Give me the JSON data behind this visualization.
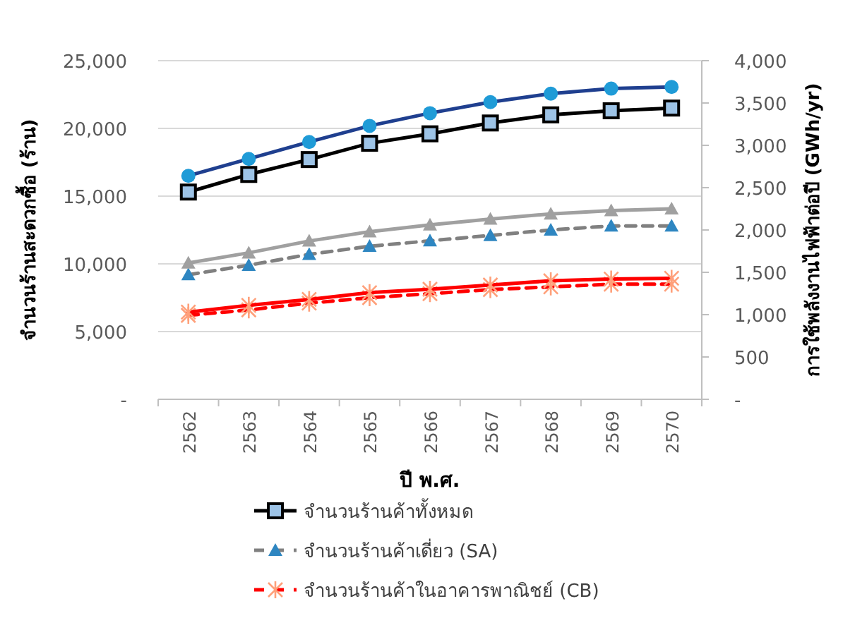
{
  "chart_data": {
    "type": "line",
    "xlabel": "ปี พ.ศ.",
    "ylabel": "จำนวนร้านสะดวกซื้อ (ร้าน)",
    "y2label": "การใช้พลังงานไฟฟ้าต่อปี (GWh/yr)",
    "categories": [
      "2562",
      "2563",
      "2564",
      "2565",
      "2566",
      "2567",
      "2568",
      "2569",
      "2570"
    ],
    "ylim": [
      0,
      25000
    ],
    "yticks": [
      {
        "value": 0,
        "label": "-"
      },
      {
        "value": 5000,
        "label": "5,000"
      },
      {
        "value": 10000,
        "label": "10,000"
      },
      {
        "value": 15000,
        "label": "15,000"
      },
      {
        "value": 20000,
        "label": "20,000"
      },
      {
        "value": 25000,
        "label": "25,000"
      }
    ],
    "y2lim": [
      0,
      4000
    ],
    "y2ticks": [
      {
        "value": 0,
        "label": "-"
      },
      {
        "value": 500,
        "label": "500"
      },
      {
        "value": 1000,
        "label": "1,000"
      },
      {
        "value": 1500,
        "label": "1,500"
      },
      {
        "value": 2000,
        "label": "2,000"
      },
      {
        "value": 2500,
        "label": "2,500"
      },
      {
        "value": 3000,
        "label": "3,000"
      },
      {
        "value": 3500,
        "label": "3,500"
      },
      {
        "value": 4000,
        "label": "4,000"
      }
    ],
    "grid": "y",
    "legend": "bottom",
    "series": [
      {
        "name": "จำนวนร้านค้าทั้งหมด",
        "color": "#000000",
        "marker": "square",
        "line_style": "solid",
        "values": [
          15300,
          16600,
          17700,
          18900,
          19600,
          20400,
          21000,
          21300,
          21500
        ]
      },
      {
        "name": "จำนวนร้านค้าเดี่ยว (SA)",
        "color": "#808080",
        "marker": "triangle",
        "line_style": "dashed",
        "values": [
          9200,
          9900,
          10700,
          11300,
          11700,
          12100,
          12500,
          12800,
          12800
        ]
      },
      {
        "name": "จำนวนร้านค้าในอาคารพาณิชย์ (CB)",
        "color": "#ff0000",
        "marker": "cross",
        "line_style": "dashed",
        "values": [
          6200,
          6600,
          7100,
          7500,
          7800,
          8100,
          8300,
          8500,
          8500
        ]
      },
      {
        "color": "#1f3f8f",
        "marker": "circle",
        "line_style": "solid",
        "axis": "y2",
        "values": [
          2640,
          2840,
          3040,
          3230,
          3380,
          3510,
          3610,
          3670,
          3690
        ]
      },
      {
        "color": "#a0a0a0",
        "marker": "triangle",
        "line_style": "solid",
        "axis": "y2",
        "values": [
          1610,
          1730,
          1870,
          1980,
          2060,
          2130,
          2190,
          2230,
          2250
        ]
      },
      {
        "color": "#ff0000",
        "marker": "cross",
        "line_style": "solid",
        "axis": "y2",
        "values": [
          1030,
          1110,
          1180,
          1260,
          1300,
          1350,
          1400,
          1420,
          1430
        ]
      }
    ]
  }
}
